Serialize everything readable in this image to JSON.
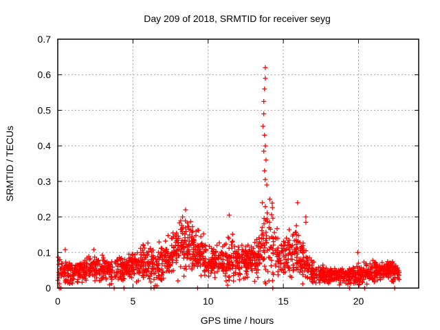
{
  "chart_data": {
    "type": "scatter",
    "title": "Day 209 of 2018, SRMTID for receiver seyg",
    "xlabel": "GPS time / hours",
    "ylabel": "SRMTID / TECUs",
    "xlim": [
      0,
      24
    ],
    "ylim": [
      0,
      0.7
    ],
    "grid": true,
    "legend": "none",
    "marker": "plus",
    "color": "#ff0000",
    "xticks": [
      {
        "value": 0,
        "label": "0"
      },
      {
        "value": 5,
        "label": "5"
      },
      {
        "value": 10,
        "label": "10"
      },
      {
        "value": 15,
        "label": "15"
      },
      {
        "value": 20,
        "label": "20"
      }
    ],
    "yticks": [
      {
        "value": 0,
        "label": "0"
      },
      {
        "value": 0.1,
        "label": "0.1"
      },
      {
        "value": 0.2,
        "label": "0.2"
      },
      {
        "value": 0.3,
        "label": "0.3"
      },
      {
        "value": 0.4,
        "label": "0.4"
      },
      {
        "value": 0.5,
        "label": "0.5"
      },
      {
        "value": 0.6,
        "label": "0.6"
      },
      {
        "value": 0.7,
        "label": "0.7"
      }
    ],
    "envelope": {
      "description": "Binned approximation of the dense scatter: for each time bin, approximate median and spread of SRMTID values",
      "bins_hours": [
        0.0,
        0.5,
        1.0,
        1.5,
        2.0,
        2.5,
        3.0,
        3.5,
        4.0,
        4.5,
        5.0,
        5.5,
        6.0,
        6.5,
        7.0,
        7.5,
        8.0,
        8.5,
        9.0,
        9.5,
        10.0,
        10.5,
        11.0,
        11.5,
        12.0,
        12.5,
        13.0,
        13.5,
        14.0,
        14.5,
        15.0,
        15.5,
        16.0,
        16.5,
        17.0,
        17.5,
        18.0,
        18.5,
        19.0,
        19.5,
        20.0,
        20.5,
        21.0,
        21.5,
        22.0,
        22.5
      ],
      "median": [
        0.045,
        0.045,
        0.04,
        0.045,
        0.05,
        0.055,
        0.055,
        0.05,
        0.055,
        0.06,
        0.065,
        0.07,
        0.07,
        0.06,
        0.075,
        0.095,
        0.11,
        0.125,
        0.12,
        0.1,
        0.075,
        0.07,
        0.07,
        0.075,
        0.075,
        0.08,
        0.085,
        0.1,
        0.15,
        0.11,
        0.09,
        0.1,
        0.09,
        0.07,
        0.04,
        0.04,
        0.035,
        0.035,
        0.035,
        0.035,
        0.04,
        0.04,
        0.045,
        0.05,
        0.045,
        0.045
      ],
      "spread": [
        0.03,
        0.03,
        0.02,
        0.02,
        0.025,
        0.025,
        0.025,
        0.025,
        0.025,
        0.025,
        0.03,
        0.035,
        0.04,
        0.035,
        0.04,
        0.045,
        0.05,
        0.06,
        0.05,
        0.04,
        0.03,
        0.03,
        0.035,
        0.05,
        0.03,
        0.035,
        0.035,
        0.05,
        0.1,
        0.05,
        0.04,
        0.045,
        0.05,
        0.03,
        0.02,
        0.015,
        0.015,
        0.015,
        0.015,
        0.015,
        0.025,
        0.02,
        0.02,
        0.02,
        0.02,
        0.02
      ]
    },
    "notable_points": [
      {
        "x": 13.8,
        "y": 0.62
      },
      {
        "x": 13.8,
        "y": 0.59
      },
      {
        "x": 13.75,
        "y": 0.56
      },
      {
        "x": 13.7,
        "y": 0.525
      },
      {
        "x": 13.7,
        "y": 0.49
      },
      {
        "x": 13.65,
        "y": 0.455
      },
      {
        "x": 13.75,
        "y": 0.43
      },
      {
        "x": 13.8,
        "y": 0.4
      },
      {
        "x": 13.7,
        "y": 0.385
      },
      {
        "x": 13.85,
        "y": 0.36
      },
      {
        "x": 13.75,
        "y": 0.33
      },
      {
        "x": 13.8,
        "y": 0.305
      },
      {
        "x": 13.9,
        "y": 0.29
      },
      {
        "x": 13.6,
        "y": 0.24
      },
      {
        "x": 14.1,
        "y": 0.25
      },
      {
        "x": 8.5,
        "y": 0.22
      },
      {
        "x": 8.3,
        "y": 0.2
      },
      {
        "x": 11.4,
        "y": 0.205
      },
      {
        "x": 15.95,
        "y": 0.24
      },
      {
        "x": 16.5,
        "y": 0.2
      },
      {
        "x": 16.5,
        "y": 0.185
      },
      {
        "x": 0.5,
        "y": 0.108
      },
      {
        "x": 2.4,
        "y": 0.108
      },
      {
        "x": 19.95,
        "y": 0.1
      },
      {
        "x": 9.2,
        "y": 0.16
      },
      {
        "x": 11.2,
        "y": 0.02
      },
      {
        "x": 16.9,
        "y": 0.023
      },
      {
        "x": 0.1,
        "y": 0.0
      },
      {
        "x": 0.2,
        "y": 0.0
      },
      {
        "x": 3.75,
        "y": 0.0
      },
      {
        "x": 4.4,
        "y": 0.0
      },
      {
        "x": 6.2,
        "y": 0.0
      },
      {
        "x": 6.4,
        "y": 0.0
      },
      {
        "x": 9.3,
        "y": 0.0
      },
      {
        "x": 14.3,
        "y": 0.0
      },
      {
        "x": 19.4,
        "y": 0.0
      },
      {
        "x": 20.4,
        "y": 0.0
      },
      {
        "x": 22.4,
        "y": 0.0
      }
    ],
    "data_end_hours": 22.7
  }
}
